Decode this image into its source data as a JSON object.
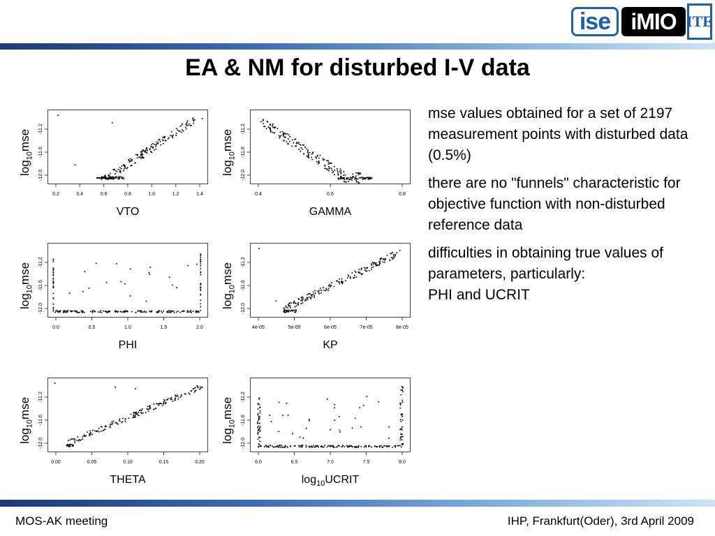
{
  "logos": {
    "ise": "ise",
    "imio": "iMIO",
    "ite": "ITE"
  },
  "slide_title": "EA & NM for disturbed I-V data",
  "y_label_prefix": "log",
  "y_label_sub": "10",
  "y_label_suffix": "mse",
  "plots": [
    {
      "xlabel": "VTO",
      "xticks": [
        "0.2",
        "0.4",
        "0.6",
        "0.8",
        "1.0",
        "1.2",
        "1.4"
      ],
      "yticks": [
        "-11.2",
        "-11.6",
        "-12.0"
      ]
    },
    {
      "xlabel": "GAMMA",
      "xticks": [
        "0.4",
        "0.6",
        "0.8"
      ],
      "yticks": [
        "-11.2",
        "-11.6",
        "-12.0"
      ]
    },
    {
      "xlabel": "PHI",
      "xticks": [
        "0.0",
        "0.5",
        "1.0",
        "1.5",
        "2.0"
      ],
      "yticks": [
        "-11.2",
        "-11.6",
        "-12.0"
      ]
    },
    {
      "xlabel": "KP",
      "xticks": [
        "4e-05",
        "5e-05",
        "6e-05",
        "7e-05",
        "8e-05"
      ],
      "yticks": [
        "-11.2",
        "-11.6",
        "-12.0"
      ]
    },
    {
      "xlabel": "THETA",
      "xticks": [
        "0.00",
        "0.05",
        "0.10",
        "0.15",
        "0.20"
      ],
      "yticks": [
        "-11.2",
        "-11.6",
        "-12.0"
      ]
    },
    {
      "xlabel_prefix": "log",
      "xlabel_sub": "10",
      "xlabel_suffix": "UCRIT",
      "xticks": [
        "6.0",
        "6.5",
        "7.0",
        "7.5",
        "8.0"
      ],
      "yticks": [
        "-11.2",
        "-11.6",
        "-12.0"
      ]
    }
  ],
  "bullets": [
    "mse values obtained for a set of 2197 measurement points with disturbed data (0.5%)",
    "there are no \"funnels\" characteristic for objective function with non-disturbed reference data",
    "difficulties in obtaining true values of parameters, particularly:",
    "PHI and UCRIT"
  ],
  "footer": {
    "left": "MOS-AK meeting",
    "right": "IHP, Frankfurt(Oder), 3rd April 2009"
  }
}
